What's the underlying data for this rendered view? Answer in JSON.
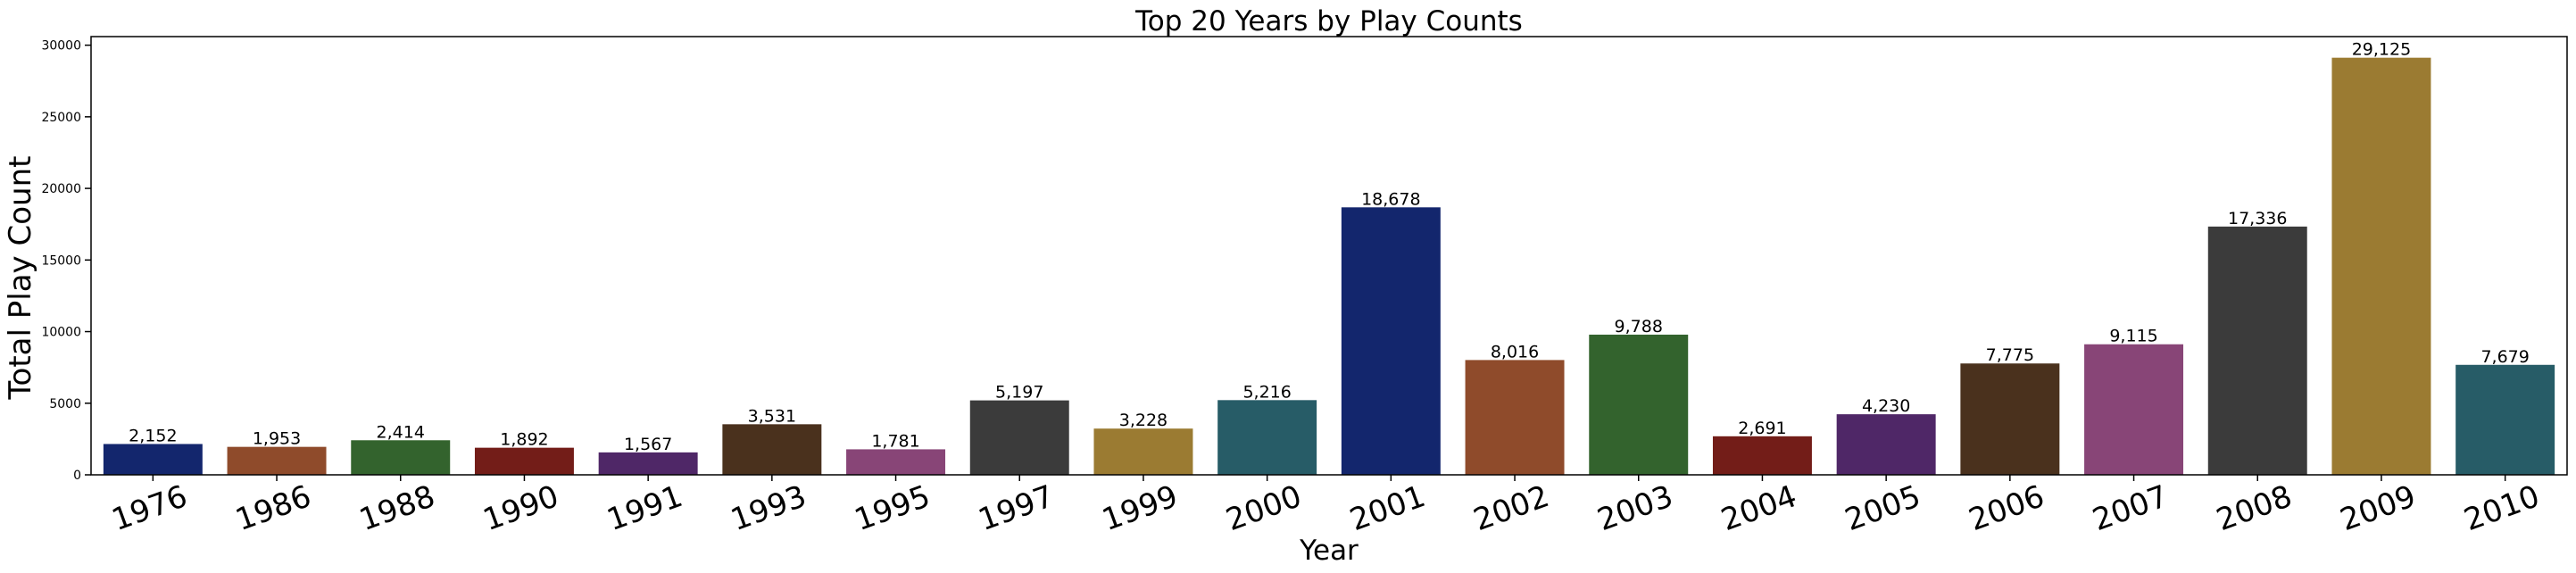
{
  "chart_data": {
    "type": "bar",
    "title": "Top 20 Years by Play Counts",
    "xlabel": "Year",
    "ylabel": "Total Play Count",
    "categories": [
      "1976",
      "1986",
      "1988",
      "1990",
      "1991",
      "1993",
      "1995",
      "1997",
      "1999",
      "2000",
      "2001",
      "2002",
      "2003",
      "2004",
      "2005",
      "2006",
      "2007",
      "2008",
      "2009",
      "2010"
    ],
    "values": [
      2152,
      1953,
      2414,
      1892,
      1567,
      3531,
      1781,
      5197,
      3228,
      5216,
      18678,
      8016,
      9788,
      2691,
      4230,
      7775,
      9115,
      17336,
      29125,
      7679
    ],
    "data_labels": [
      "2,152",
      "1,953",
      "2,414",
      "1,892",
      "1,567",
      "3,531",
      "1,781",
      "5,197",
      "3,228",
      "5,216",
      "18,678",
      "8,016",
      "9,788",
      "2,691",
      "4,230",
      "7,775",
      "9,115",
      "17,336",
      "29,125",
      "7,679"
    ],
    "yticks": [
      0,
      5000,
      10000,
      15000,
      20000,
      25000,
      30000
    ],
    "ylim": [
      0,
      30600
    ],
    "grid": false,
    "colors": [
      "#13266d",
      "#8f4b2b",
      "#33632d",
      "#731d18",
      "#4f2767",
      "#4a311d",
      "#884577",
      "#3b3b3b",
      "#9b7b32",
      "#275c67",
      "#13266d",
      "#8f4b2b",
      "#33632d",
      "#731d18",
      "#4f2767",
      "#4a311d",
      "#884577",
      "#3b3b3b",
      "#9b7b32",
      "#275c67"
    ]
  }
}
